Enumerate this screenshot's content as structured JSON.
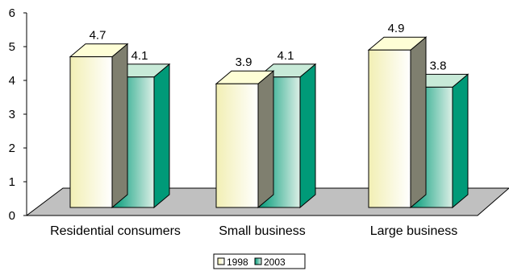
{
  "chart_data": {
    "type": "bar",
    "categories": [
      "Residential consumers",
      "Small business",
      "Large business"
    ],
    "series": [
      {
        "name": "1998",
        "values": [
          4.7,
          3.9,
          4.9
        ],
        "value_labels": [
          "4.7",
          "3.9",
          "4.9"
        ],
        "color": "#fefed6"
      },
      {
        "name": "2003",
        "values": [
          4.1,
          4.1,
          3.8
        ],
        "value_labels": [
          "4.1",
          "4.1",
          "3.8"
        ],
        "color": "#009a78"
      }
    ],
    "y_ticks": [
      "0",
      "1",
      "2",
      "3",
      "4",
      "5",
      "6"
    ],
    "ylim": [
      0,
      6
    ],
    "grid": false,
    "legend_position": "bottom",
    "title": "",
    "xlabel": "",
    "ylabel": ""
  }
}
